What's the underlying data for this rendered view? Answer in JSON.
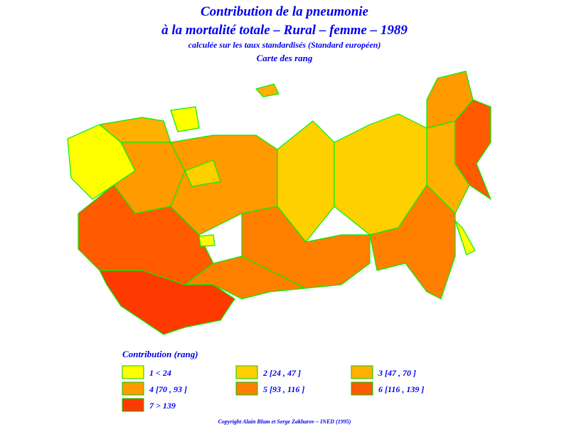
{
  "header": {
    "title_line1": "Contribution de la pneumonie",
    "title_line2": "à la mortalité totale – Rural – femme – 1989",
    "subtitle": "calculée sur les taux standardisés (Standard européen)",
    "map_type": "Carte des rang"
  },
  "legend": {
    "title": "Contribution (rang)",
    "items": [
      {
        "label": "1  <  24",
        "color": "#ffff00"
      },
      {
        "label": "2 [24 , 47 ]",
        "color": "#ffd000"
      },
      {
        "label": "3 [47 , 70 ]",
        "color": "#ffb000"
      },
      {
        "label": "4 [70 , 93 ]",
        "color": "#ff9a00"
      },
      {
        "label": "5 [93 , 116 ]",
        "color": "#ff8000"
      },
      {
        "label": "6 [116 , 139 ]",
        "color": "#ff5a00"
      },
      {
        "label": "7  >  139",
        "color": "#ff3a00"
      }
    ]
  },
  "footer": {
    "copyright": "Copyright Alain Blum et Serge Zakharov – INED (1995)"
  }
}
